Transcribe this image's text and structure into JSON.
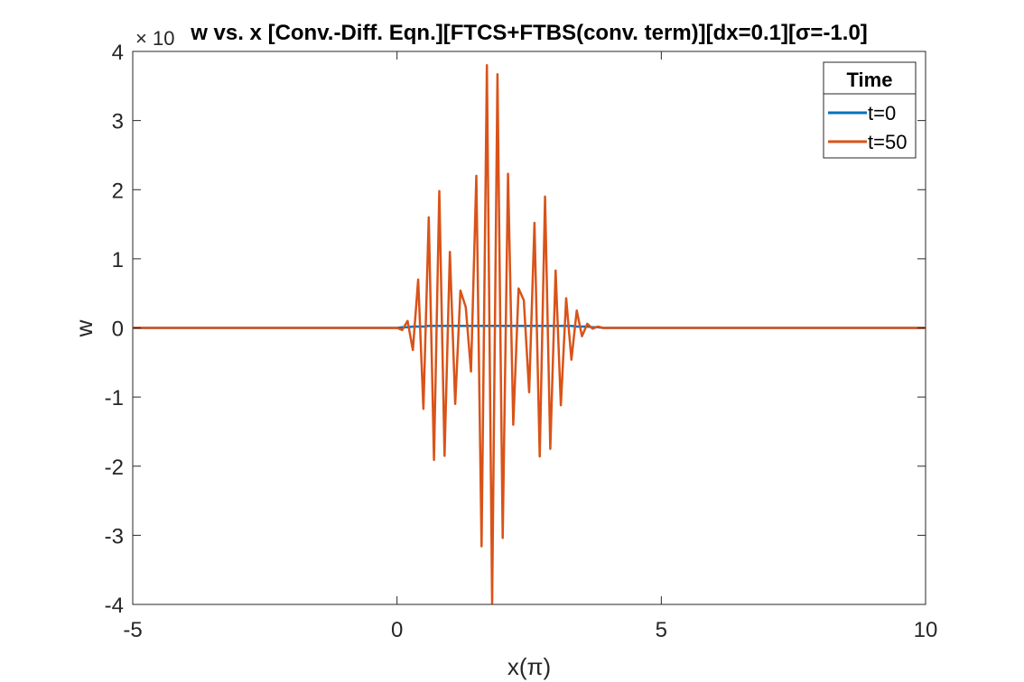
{
  "chart_data": {
    "type": "line",
    "title": "w vs. x [Conv.-Diff. Eqn.][FTCS+FTBS(conv. term)][dx=0.1][σ=-1.0]",
    "xlabel": "x(π)",
    "ylabel": "w",
    "y_exponent_label": "× 10",
    "xlim": [
      -5,
      10
    ],
    "ylim": [
      -4,
      4
    ],
    "xticks": [
      -5,
      0,
      5,
      10
    ],
    "yticks": [
      -4,
      -3,
      -2,
      -1,
      0,
      1,
      2,
      3,
      4
    ],
    "xtick_labels": [
      "-5",
      "0",
      "5",
      "10"
    ],
    "ytick_labels": [
      "-4",
      "-3",
      "-2",
      "-1",
      "0",
      "1",
      "2",
      "3",
      "4"
    ],
    "grid": false,
    "legend": {
      "title": "Time",
      "placement": "top-right"
    },
    "series": [
      {
        "name": "t=0",
        "color": "#0072BD",
        "x": [
          -5,
          0,
          0.1,
          0.2,
          0.3,
          0.4,
          0.5,
          0.6,
          0.7,
          0.8,
          0.9,
          1.0,
          1.1,
          1.2,
          1.3,
          1.4,
          1.5,
          1.6,
          1.7,
          1.8,
          1.9,
          2.0,
          2.1,
          2.2,
          2.3,
          2.4,
          2.5,
          2.6,
          2.7,
          2.8,
          2.9,
          3.0,
          3.1,
          3.2,
          3.3,
          3.4,
          3.5,
          3.6,
          3.7,
          3.8,
          3.9,
          4.0,
          10
        ],
        "y": [
          0,
          0,
          0.01,
          0.01,
          0.02,
          0.02,
          0.02,
          0.03,
          0.03,
          0.03,
          0.03,
          0.03,
          0.03,
          0.03,
          0.03,
          0.03,
          0.03,
          0.03,
          0.03,
          0.03,
          0.03,
          0.03,
          0.03,
          0.03,
          0.03,
          0.03,
          0.03,
          0.03,
          0.03,
          0.03,
          0.03,
          0.03,
          0.03,
          0.03,
          0.03,
          0.02,
          0.02,
          0.02,
          0.01,
          0.01,
          0.0,
          0,
          0
        ]
      },
      {
        "name": "t=50",
        "color": "#D95319",
        "x": [
          -5,
          0,
          0.1,
          0.2,
          0.3,
          0.4,
          0.5,
          0.6,
          0.7,
          0.8,
          0.9,
          1.0,
          1.1,
          1.2,
          1.3,
          1.4,
          1.5,
          1.6,
          1.7,
          1.8,
          1.9,
          2.0,
          2.1,
          2.2,
          2.3,
          2.4,
          2.5,
          2.6,
          2.7,
          2.8,
          2.9,
          3.0,
          3.1,
          3.2,
          3.3,
          3.4,
          3.5,
          3.6,
          3.7,
          3.8,
          3.9,
          4.0,
          10
        ],
        "y": [
          0,
          0,
          -0.03,
          0.1,
          -0.32,
          0.7,
          -1.17,
          1.6,
          -1.91,
          1.98,
          -1.85,
          1.1,
          -1.1,
          0.54,
          0.3,
          -0.63,
          2.2,
          -3.16,
          3.8,
          -3.98,
          3.67,
          -3.04,
          2.23,
          -1.4,
          0.57,
          0.4,
          -0.93,
          1.52,
          -1.86,
          1.9,
          -1.75,
          0.83,
          -1.12,
          0.43,
          -0.46,
          0.25,
          -0.12,
          0.06,
          -0.01,
          0.02,
          0,
          0,
          0
        ]
      }
    ]
  }
}
